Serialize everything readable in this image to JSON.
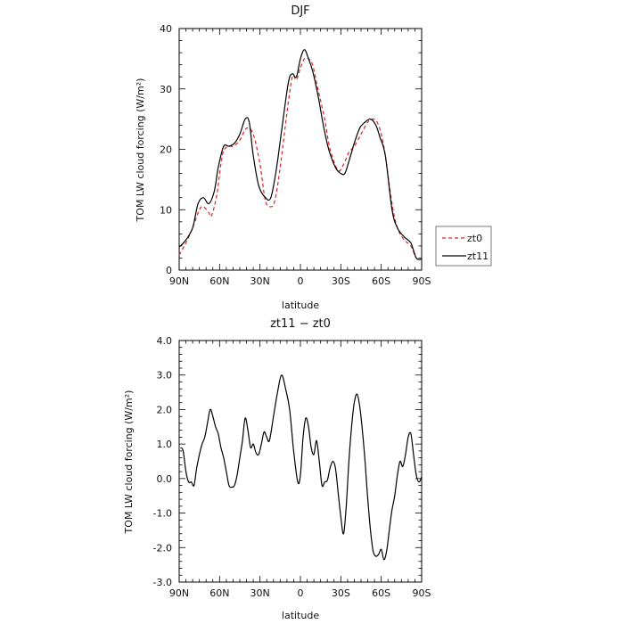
{
  "chart_data": [
    {
      "type": "line",
      "title": "DJF",
      "xlabel": "latitude",
      "ylabel": "TOM LW cloud forcing (W/m²)",
      "xlim": [
        90,
        -90
      ],
      "ylim": [
        0,
        40
      ],
      "x_ticks": [
        90,
        60,
        30,
        0,
        -30,
        -60,
        -90
      ],
      "x_tick_labels": [
        "90N",
        "60N",
        "30N",
        "0",
        "30S",
        "60S",
        "90S"
      ],
      "y_ticks": [
        0,
        10,
        20,
        30,
        40
      ],
      "y_tick_labels": [
        "0",
        "10",
        "20",
        "30",
        "40"
      ],
      "grid": false,
      "legend": "outside-right",
      "series": [
        {
          "name": "zt0",
          "color": "#dd2222",
          "dash": "dashed",
          "x": [
            90,
            85,
            80,
            75,
            72,
            68,
            66,
            62,
            58,
            54,
            50,
            45,
            40,
            35,
            30,
            26,
            22,
            19,
            15,
            10,
            6,
            3,
            0,
            -3,
            -6,
            -9,
            -13,
            -18,
            -22,
            -28,
            -32,
            -36,
            -40,
            -45,
            -50,
            -54,
            -57,
            -60,
            -63,
            -68,
            -72,
            -77,
            -82,
            -86,
            -90
          ],
          "y": [
            2.5,
            4.5,
            7,
            10,
            10.5,
            9.5,
            9,
            12.5,
            19,
            20.5,
            20.5,
            21.5,
            23.5,
            22.5,
            17.5,
            11.5,
            10.5,
            11.5,
            17,
            26,
            32,
            31.5,
            33.5,
            35,
            35,
            34,
            30,
            25,
            20,
            16.5,
            17.5,
            19.5,
            20.5,
            22.5,
            24.5,
            25,
            24.5,
            22.5,
            19,
            11,
            7,
            5,
            4,
            2,
            1.8
          ]
        },
        {
          "name": "zt11",
          "color": "#000000",
          "dash": "solid",
          "x": [
            90,
            85,
            80,
            76,
            72,
            68,
            64,
            61,
            57,
            53,
            49,
            45,
            41,
            38,
            35,
            31,
            26,
            22,
            18,
            14,
            9,
            6,
            3,
            0,
            -3,
            -6,
            -9,
            -13,
            -17,
            -21,
            -26,
            -30,
            -33,
            -36,
            -40,
            -44,
            -48,
            -52,
            -56,
            -59,
            -63,
            -68,
            -72,
            -77,
            -82,
            -86,
            -90
          ],
          "y": [
            3.8,
            5,
            7,
            11,
            12,
            11,
            13,
            17,
            20.5,
            20.5,
            21,
            22.5,
            25,
            24.5,
            19,
            14,
            12,
            12,
            16.5,
            23,
            31,
            32.5,
            32,
            35,
            36.5,
            35,
            33,
            29,
            24,
            20,
            17,
            16,
            16,
            18,
            21,
            23.5,
            24.5,
            25,
            24,
            22,
            19,
            10,
            7,
            5.5,
            4.5,
            2,
            1.8
          ]
        }
      ]
    },
    {
      "type": "line",
      "title": "zt11 − zt0",
      "xlabel": "latitude",
      "ylabel": "TOM LW cloud forcing (W/m²)",
      "xlim": [
        90,
        -90
      ],
      "ylim": [
        -3,
        4
      ],
      "x_ticks": [
        90,
        60,
        30,
        0,
        -30,
        -60,
        -90
      ],
      "x_tick_labels": [
        "90N",
        "60N",
        "30N",
        "0",
        "30S",
        "60S",
        "90S"
      ],
      "y_ticks": [
        -3,
        -2,
        -1,
        0,
        1,
        2,
        3,
        4
      ],
      "y_tick_labels": [
        "-3.0",
        "-2.0",
        "-1.0",
        "0.0",
        "1.0",
        "2.0",
        "3.0",
        "4.0"
      ],
      "grid": false,
      "series": [
        {
          "color": "#000000",
          "x": [
            89,
            87,
            85,
            83,
            81,
            79,
            77,
            75,
            73,
            71,
            69,
            67,
            65,
            63,
            61,
            59,
            57,
            55,
            53,
            51,
            49,
            47,
            45,
            43,
            41,
            39,
            37,
            35,
            33,
            31,
            29,
            27,
            25,
            23,
            20,
            17,
            14,
            11,
            8,
            5,
            2,
            0,
            -2,
            -4,
            -6,
            -8,
            -10,
            -12,
            -14,
            -16,
            -18,
            -20,
            -22,
            -24,
            -26,
            -28,
            -30,
            -32,
            -34,
            -36,
            -38,
            -40,
            -42,
            -44,
            -46,
            -48,
            -50,
            -52,
            -54,
            -56,
            -58,
            -60,
            -62,
            -64,
            -66,
            -68,
            -70,
            -72,
            -74,
            -76,
            -78,
            -80,
            -82,
            -84,
            -86,
            -88,
            -90
          ],
          "y": [
            0.9,
            0.8,
            0.2,
            -0.1,
            -0.1,
            -0.2,
            0.3,
            0.7,
            1.0,
            1.2,
            1.6,
            2.0,
            1.8,
            1.5,
            1.3,
            0.9,
            0.6,
            0.2,
            -0.2,
            -0.25,
            -0.2,
            0.1,
            0.6,
            1.1,
            1.75,
            1.4,
            0.9,
            1.0,
            0.75,
            0.7,
            1.0,
            1.35,
            1.2,
            1.1,
            1.8,
            2.5,
            3.0,
            2.6,
            2.0,
            0.8,
            -0.1,
            0.1,
            1.2,
            1.75,
            1.5,
            0.9,
            0.7,
            1.1,
            0.5,
            -0.2,
            -0.1,
            -0.05,
            0.3,
            0.5,
            0.3,
            -0.4,
            -1.1,
            -1.6,
            -0.8,
            0.5,
            1.5,
            2.2,
            2.45,
            2.1,
            1.4,
            0.5,
            -0.6,
            -1.5,
            -2.1,
            -2.25,
            -2.2,
            -2.05,
            -2.35,
            -2.1,
            -1.5,
            -0.9,
            -0.5,
            0.1,
            0.5,
            0.35,
            0.7,
            1.2,
            1.3,
            0.7,
            0.1,
            -0.1,
            0.05
          ]
        }
      ]
    }
  ]
}
